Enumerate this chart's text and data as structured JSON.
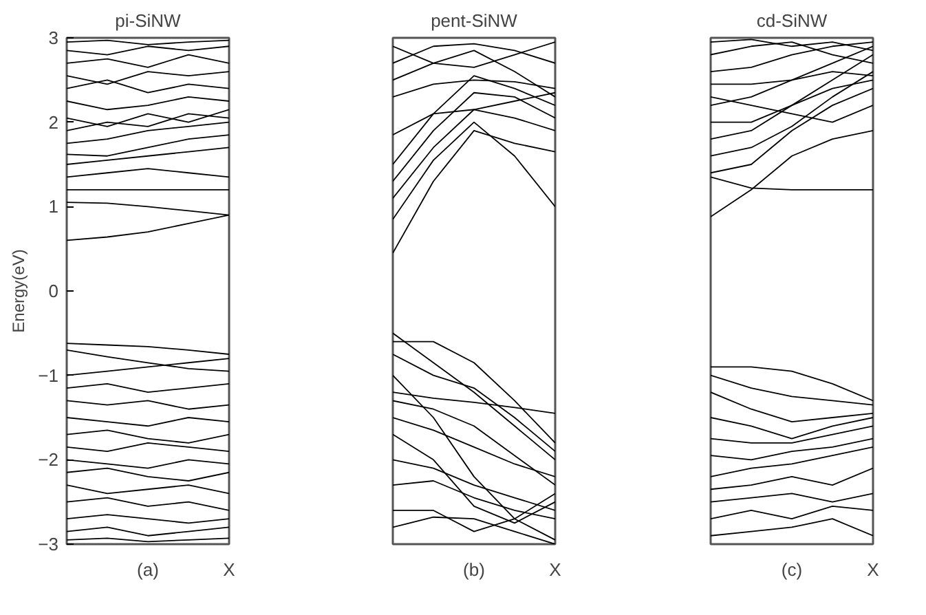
{
  "chart_data": [
    {
      "type": "line",
      "title": "pi-SiNW",
      "ylabel": "Energy(eV)",
      "categories": [
        null,
        null,
        "(a)",
        null,
        "X"
      ],
      "ylim": [
        -3,
        3
      ],
      "yticks": [
        -3,
        -2,
        -1,
        0,
        1,
        2,
        3
      ],
      "grid": false,
      "series": [
        {
          "color": "#000000",
          "values": [
            0.6,
            0.64,
            0.7,
            0.8,
            0.9
          ]
        },
        {
          "color": "#000000",
          "values": [
            1.05,
            1.04,
            1.0,
            0.95,
            0.9
          ]
        },
        {
          "color": "#000000",
          "values": [
            1.2,
            1.2,
            1.2,
            1.2,
            1.2
          ]
        },
        {
          "color": "#000000",
          "values": [
            1.35,
            1.4,
            1.45,
            1.4,
            1.35
          ]
        },
        {
          "color": "#000000",
          "values": [
            1.5,
            1.55,
            1.6,
            1.65,
            1.7
          ]
        },
        {
          "color": "#000000",
          "values": [
            1.62,
            1.6,
            1.7,
            1.8,
            1.85
          ]
        },
        {
          "color": "#000000",
          "values": [
            1.75,
            1.8,
            1.9,
            1.95,
            2.0
          ]
        },
        {
          "color": "#000000",
          "values": [
            1.9,
            2.0,
            1.95,
            2.1,
            2.05
          ]
        },
        {
          "color": "#000000",
          "values": [
            2.05,
            1.95,
            2.1,
            2.0,
            2.15
          ]
        },
        {
          "color": "#000000",
          "values": [
            2.25,
            2.15,
            2.2,
            2.3,
            2.25
          ]
        },
        {
          "color": "#000000",
          "values": [
            2.4,
            2.5,
            2.35,
            2.45,
            2.4
          ]
        },
        {
          "color": "#000000",
          "values": [
            2.55,
            2.45,
            2.6,
            2.55,
            2.6
          ]
        },
        {
          "color": "#000000",
          "values": [
            2.7,
            2.75,
            2.65,
            2.8,
            2.7
          ]
        },
        {
          "color": "#000000",
          "values": [
            2.85,
            2.8,
            2.9,
            2.85,
            2.9
          ]
        },
        {
          "color": "#000000",
          "values": [
            2.95,
            2.97,
            2.92,
            2.95,
            2.97
          ]
        },
        {
          "color": "#000000",
          "values": [
            -0.62,
            -0.64,
            -0.66,
            -0.7,
            -0.75
          ]
        },
        {
          "color": "#000000",
          "values": [
            -0.7,
            -0.78,
            -0.85,
            -0.92,
            -0.95
          ]
        },
        {
          "color": "#000000",
          "values": [
            -1.0,
            -0.95,
            -0.9,
            -0.85,
            -0.8
          ]
        },
        {
          "color": "#000000",
          "values": [
            -1.15,
            -1.1,
            -1.2,
            -1.15,
            -1.1
          ]
        },
        {
          "color": "#000000",
          "values": [
            -1.3,
            -1.35,
            -1.3,
            -1.4,
            -1.35
          ]
        },
        {
          "color": "#000000",
          "values": [
            -1.5,
            -1.55,
            -1.6,
            -1.5,
            -1.55
          ]
        },
        {
          "color": "#000000",
          "values": [
            -1.7,
            -1.65,
            -1.75,
            -1.8,
            -1.7
          ]
        },
        {
          "color": "#000000",
          "values": [
            -1.85,
            -1.9,
            -1.8,
            -1.85,
            -1.9
          ]
        },
        {
          "color": "#000000",
          "values": [
            -2.0,
            -2.05,
            -2.1,
            -2.0,
            -2.05
          ]
        },
        {
          "color": "#000000",
          "values": [
            -2.15,
            -2.1,
            -2.2,
            -2.25,
            -2.15
          ]
        },
        {
          "color": "#000000",
          "values": [
            -2.3,
            -2.4,
            -2.35,
            -2.3,
            -2.4
          ]
        },
        {
          "color": "#000000",
          "values": [
            -2.5,
            -2.45,
            -2.55,
            -2.5,
            -2.6
          ]
        },
        {
          "color": "#000000",
          "values": [
            -2.7,
            -2.65,
            -2.7,
            -2.75,
            -2.7
          ]
        },
        {
          "color": "#000000",
          "values": [
            -2.85,
            -2.8,
            -2.9,
            -2.85,
            -2.8
          ]
        },
        {
          "color": "#000000",
          "values": [
            -2.95,
            -2.93,
            -2.97,
            -2.95,
            -2.93
          ]
        }
      ]
    },
    {
      "type": "line",
      "title": "pent-SiNW",
      "categories": [
        null,
        null,
        "(b)",
        null,
        "X"
      ],
      "ylim": [
        -3,
        3
      ],
      "tick_labels": "x",
      "grid": false,
      "series": [
        {
          "color": "#000000",
          "values": [
            0.45,
            1.3,
            1.9,
            1.75,
            1.65
          ]
        },
        {
          "color": "#000000",
          "values": [
            0.85,
            1.55,
            2.0,
            1.6,
            1.0
          ]
        },
        {
          "color": "#000000",
          "values": [
            1.1,
            1.7,
            2.15,
            2.05,
            1.9
          ]
        },
        {
          "color": "#000000",
          "values": [
            1.3,
            1.9,
            2.35,
            2.3,
            2.05
          ]
        },
        {
          "color": "#000000",
          "values": [
            1.5,
            2.1,
            2.55,
            2.4,
            2.2
          ]
        },
        {
          "color": "#000000",
          "values": [
            1.85,
            2.1,
            2.15,
            2.25,
            2.35
          ]
        },
        {
          "color": "#000000",
          "values": [
            2.3,
            2.45,
            2.5,
            2.48,
            2.4
          ]
        },
        {
          "color": "#000000",
          "values": [
            2.5,
            2.7,
            2.85,
            2.6,
            2.3
          ]
        },
        {
          "color": "#000000",
          "values": [
            2.7,
            2.9,
            2.93,
            2.85,
            2.7
          ]
        },
        {
          "color": "#000000",
          "values": [
            2.9,
            2.7,
            2.65,
            2.8,
            2.95
          ]
        },
        {
          "color": "#000000",
          "values": [
            -0.5,
            -0.85,
            -1.2,
            -1.6,
            -2.0
          ]
        },
        {
          "color": "#000000",
          "values": [
            -0.6,
            -0.6,
            -0.85,
            -1.3,
            -1.8
          ]
        },
        {
          "color": "#000000",
          "values": [
            -0.75,
            -1.0,
            -1.15,
            -1.5,
            -1.9
          ]
        },
        {
          "color": "#000000",
          "values": [
            -1.2,
            -1.27,
            -1.32,
            -1.38,
            -1.45
          ]
        },
        {
          "color": "#000000",
          "values": [
            -1.0,
            -1.5,
            -2.2,
            -2.7,
            -2.95
          ]
        },
        {
          "color": "#000000",
          "values": [
            -1.3,
            -1.4,
            -1.6,
            -1.95,
            -2.3
          ]
        },
        {
          "color": "#000000",
          "values": [
            -1.5,
            -1.65,
            -1.85,
            -2.05,
            -2.2
          ]
        },
        {
          "color": "#000000",
          "values": [
            -1.7,
            -2.0,
            -2.55,
            -2.75,
            -2.5
          ]
        },
        {
          "color": "#000000",
          "values": [
            -2.0,
            -2.1,
            -2.3,
            -2.45,
            -2.6
          ]
        },
        {
          "color": "#000000",
          "values": [
            -2.3,
            -2.25,
            -2.45,
            -2.6,
            -2.7
          ]
        },
        {
          "color": "#000000",
          "values": [
            -2.6,
            -2.6,
            -2.85,
            -2.7,
            -2.4
          ]
        },
        {
          "color": "#000000",
          "values": [
            -2.8,
            -2.68,
            -2.7,
            -2.85,
            -3.0
          ]
        }
      ]
    },
    {
      "type": "line",
      "title": "cd-SiNW",
      "categories": [
        null,
        null,
        "(c)",
        null,
        "X"
      ],
      "ylim": [
        -3,
        3
      ],
      "tick_labels": "x",
      "grid": false,
      "series": [
        {
          "color": "#000000",
          "values": [
            0.88,
            1.2,
            1.6,
            1.8,
            1.9
          ]
        },
        {
          "color": "#000000",
          "values": [
            1.35,
            1.22,
            1.2,
            1.2,
            1.2
          ]
        },
        {
          "color": "#000000",
          "values": [
            1.4,
            1.5,
            1.9,
            2.2,
            2.4
          ]
        },
        {
          "color": "#000000",
          "values": [
            1.6,
            1.7,
            1.95,
            2.3,
            2.6
          ]
        },
        {
          "color": "#000000",
          "values": [
            1.8,
            1.9,
            2.2,
            2.5,
            2.8
          ]
        },
        {
          "color": "#000000",
          "values": [
            2.0,
            2.0,
            2.2,
            2.4,
            2.5
          ]
        },
        {
          "color": "#000000",
          "values": [
            2.2,
            2.3,
            2.5,
            2.7,
            2.9
          ]
        },
        {
          "color": "#000000",
          "values": [
            2.3,
            2.2,
            2.1,
            2.0,
            2.2
          ]
        },
        {
          "color": "#000000",
          "values": [
            2.45,
            2.45,
            2.5,
            2.6,
            2.55
          ]
        },
        {
          "color": "#000000",
          "values": [
            2.6,
            2.65,
            2.8,
            2.9,
            2.95
          ]
        },
        {
          "color": "#000000",
          "values": [
            2.8,
            2.9,
            2.95,
            2.8,
            2.7
          ]
        },
        {
          "color": "#000000",
          "values": [
            2.95,
            2.98,
            2.9,
            2.95,
            2.85
          ]
        },
        {
          "color": "#000000",
          "values": [
            -0.9,
            -0.9,
            -0.95,
            -1.1,
            -1.3
          ]
        },
        {
          "color": "#000000",
          "values": [
            -1.0,
            -1.15,
            -1.25,
            -1.3,
            -1.35
          ]
        },
        {
          "color": "#000000",
          "values": [
            -1.2,
            -1.4,
            -1.55,
            -1.5,
            -1.45
          ]
        },
        {
          "color": "#000000",
          "values": [
            -1.5,
            -1.6,
            -1.75,
            -1.6,
            -1.5
          ]
        },
        {
          "color": "#000000",
          "values": [
            -1.75,
            -1.8,
            -1.8,
            -1.7,
            -1.6
          ]
        },
        {
          "color": "#000000",
          "values": [
            -1.95,
            -2.0,
            -1.9,
            -1.85,
            -1.75
          ]
        },
        {
          "color": "#000000",
          "values": [
            -2.2,
            -2.1,
            -2.05,
            -1.95,
            -1.85
          ]
        },
        {
          "color": "#000000",
          "values": [
            -2.35,
            -2.3,
            -2.2,
            -2.3,
            -2.1
          ]
        },
        {
          "color": "#000000",
          "values": [
            -2.5,
            -2.45,
            -2.4,
            -2.5,
            -2.4
          ]
        },
        {
          "color": "#000000",
          "values": [
            -2.7,
            -2.6,
            -2.7,
            -2.55,
            -2.6
          ]
        },
        {
          "color": "#000000",
          "values": [
            -2.9,
            -2.85,
            -2.8,
            -2.7,
            -2.9
          ]
        }
      ]
    }
  ]
}
